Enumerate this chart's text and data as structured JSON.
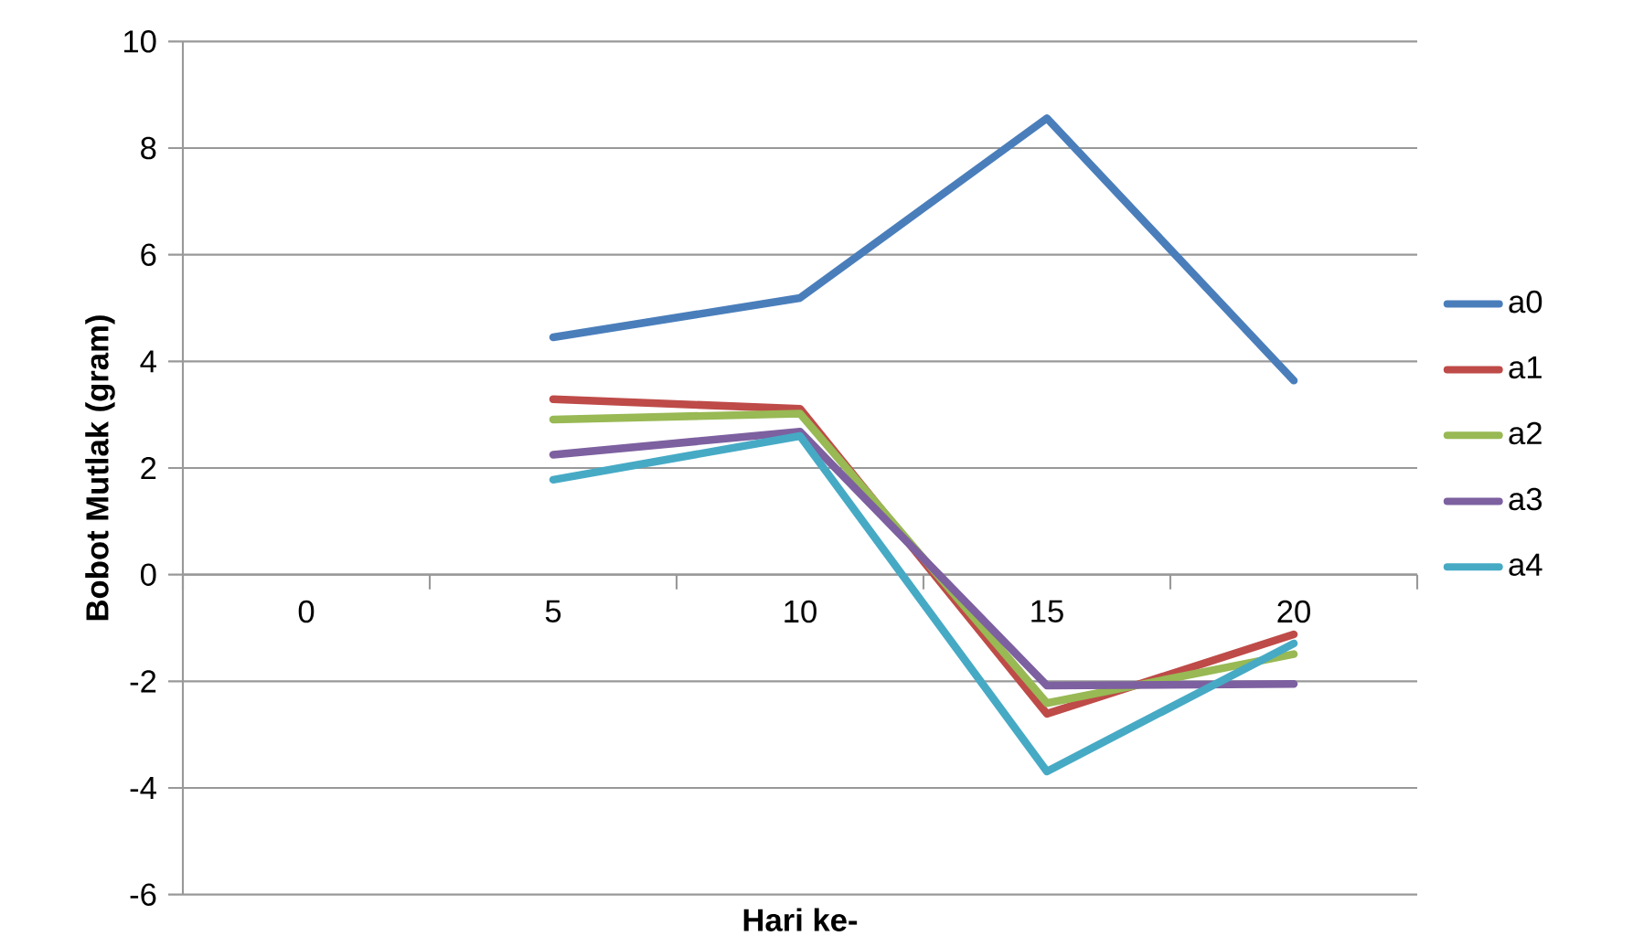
{
  "chart_data": {
    "type": "line",
    "xlabel": "Hari ke-",
    "ylabel": "Bobot Mutlak (gram)",
    "categories": [
      "0",
      "5",
      "10",
      "15",
      "20"
    ],
    "series": [
      {
        "name": "a0",
        "color": "#4a7ebb",
        "values": [
          null,
          4.45,
          5.19,
          8.56,
          3.64
        ]
      },
      {
        "name": "a1",
        "color": "#be4b48",
        "values": [
          null,
          3.29,
          3.11,
          -2.61,
          -1.12
        ]
      },
      {
        "name": "a2",
        "color": "#98b954",
        "values": [
          null,
          2.91,
          3.02,
          -2.41,
          -1.49
        ]
      },
      {
        "name": "a3",
        "color": "#7d60a0",
        "values": [
          null,
          2.25,
          2.68,
          -2.08,
          -2.05
        ]
      },
      {
        "name": "a4",
        "color": "#46aac5",
        "values": [
          null,
          1.78,
          2.6,
          -3.69,
          -1.29
        ]
      }
    ],
    "ylim": [
      -6,
      10
    ],
    "yticks": [
      -6,
      -4,
      -2,
      0,
      2,
      4,
      6,
      8,
      10
    ],
    "grid": "y",
    "legend": "right",
    "marker": "none",
    "line_style": "solid"
  }
}
